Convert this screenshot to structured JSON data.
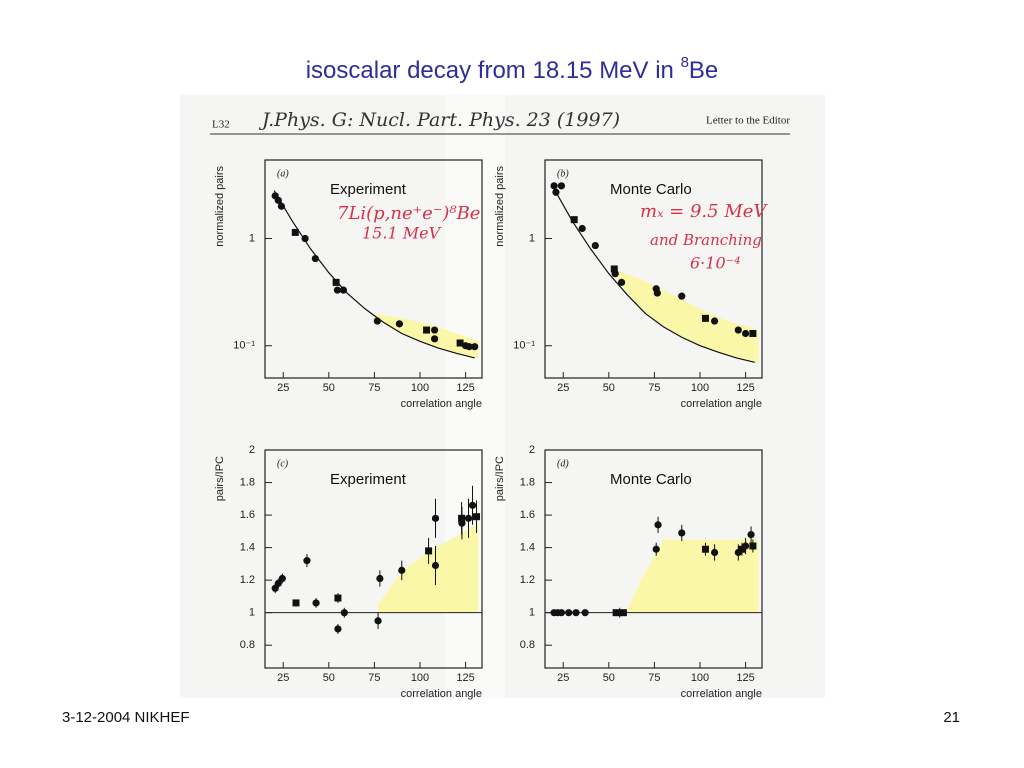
{
  "slide": {
    "title": "isoscalar decay from 18.15 MeV in ",
    "title_sup": "8",
    "title_suffix": "Be",
    "footer_left": "3-12-2004 NIKHEF",
    "page_number": "21"
  },
  "figure_header": {
    "left": "L32",
    "citation": "J.Phys. G: Nucl. Part. Phys. 23 (1997)",
    "right": "Letter to the Editor"
  },
  "chart_data": [
    {
      "type": "scatter",
      "panel_label": "(a)",
      "title": "Experiment",
      "xlabel": "correlation angle",
      "ylabel": "normalized pairs",
      "log_y": true,
      "xlim": [
        15,
        134
      ],
      "xticks": [
        25,
        50,
        75,
        100,
        125
      ],
      "ylim": [
        0.05,
        5.4
      ],
      "yticks": [
        1,
        {
          "value": 0.1,
          "label": "10⁻¹"
        }
      ],
      "annotations": [
        "7Li(p,ne⁺e⁻)⁸Be",
        "15.1 MeV"
      ],
      "annotation_color": "#d8324a",
      "series": [
        {
          "marker": "circle",
          "color": "#111111",
          "x": [
            20.6,
            22.3,
            24,
            37,
            42.6,
            54.7,
            58,
            76.6,
            88.7,
            108,
            108,
            125,
            127,
            130
          ],
          "values": [
            2.5,
            2.27,
            2.0,
            1.0,
            0.65,
            0.33,
            0.33,
            0.17,
            0.16,
            0.14,
            0.116,
            0.1,
            0.098,
            0.098
          ]
        },
        {
          "marker": "square",
          "color": "#111111",
          "x": [
            31.6,
            54,
            103.6,
            122
          ],
          "values": [
            1.14,
            0.39,
            0.14,
            0.106
          ]
        }
      ],
      "curve": {
        "color": "#111111",
        "x": [
          20,
          30,
          40,
          50,
          60,
          70,
          80,
          90,
          100,
          110,
          120,
          130
        ],
        "values": [
          2.8,
          1.45,
          0.8,
          0.48,
          0.31,
          0.22,
          0.165,
          0.13,
          0.11,
          0.095,
          0.085,
          0.077
        ]
      },
      "band": {
        "color": "#fbf7a8",
        "x": [
          75,
          90,
          105,
          120,
          132
        ],
        "low": [
          0.18,
          0.13,
          0.103,
          0.086,
          0.076
        ],
        "high": [
          0.2,
          0.18,
          0.16,
          0.13,
          0.11
        ]
      }
    },
    {
      "type": "scatter",
      "panel_label": "(b)",
      "title": "Monte Carlo",
      "xlabel": "correlation angle",
      "ylabel": "normalized pairs",
      "log_y": true,
      "xlim": [
        15,
        134
      ],
      "xticks": [
        25,
        50,
        75,
        100,
        125
      ],
      "ylim": [
        0.05,
        5.4
      ],
      "yticks": [
        1,
        {
          "value": 0.1,
          "label": "10⁻¹"
        }
      ],
      "annotations": [
        "mₓ = 9.5 MeV",
        "and Branching",
        "6·10⁻⁴"
      ],
      "annotation_color": "#d8324a",
      "series": [
        {
          "marker": "circle",
          "color": "#111111",
          "x": [
            20,
            21,
            24,
            35.4,
            42.6,
            53.5,
            57,
            76,
            76.6,
            90,
            108,
            121,
            125
          ],
          "values": [
            3.1,
            2.7,
            3.1,
            1.24,
            0.86,
            0.47,
            0.39,
            0.34,
            0.31,
            0.29,
            0.17,
            0.14,
            0.13
          ]
        },
        {
          "marker": "square",
          "color": "#111111",
          "x": [
            31,
            53,
            103,
            129
          ],
          "values": [
            1.5,
            0.52,
            0.18,
            0.13
          ]
        }
      ],
      "curve": {
        "color": "#111111",
        "x": [
          20,
          30,
          40,
          50,
          60,
          70,
          80,
          90,
          100,
          110,
          120,
          130
        ],
        "values": [
          2.9,
          1.45,
          0.8,
          0.47,
          0.3,
          0.2,
          0.15,
          0.12,
          0.1,
          0.087,
          0.077,
          0.07
        ]
      },
      "band": {
        "color": "#fbf7a8",
        "x": [
          55,
          70,
          85,
          100,
          115,
          132
        ],
        "low": [
          0.4,
          0.2,
          0.135,
          0.1,
          0.082,
          0.068
        ],
        "high": [
          0.5,
          0.4,
          0.3,
          0.22,
          0.17,
          0.14
        ]
      }
    },
    {
      "type": "scatter",
      "panel_label": "(c)",
      "title": "Experiment",
      "xlabel": "correlation angle",
      "ylabel": "pairs/IPC",
      "log_y": false,
      "xlim": [
        15,
        134
      ],
      "xticks": [
        25,
        50,
        75,
        100,
        125
      ],
      "ylim": [
        0.66,
        2
      ],
      "yticks": [
        0.8,
        1,
        1.2,
        1.4,
        1.6,
        1.8,
        2
      ],
      "reference": 1,
      "series": [
        {
          "marker": "circle",
          "color": "#111111",
          "x": [
            20.6,
            22.3,
            24.5,
            38,
            43,
            55,
            58.5,
            77,
            78,
            90,
            108.5,
            108.5,
            123,
            126.6,
            128.8
          ],
          "values": [
            1.15,
            1.18,
            1.21,
            1.32,
            1.06,
            0.9,
            1.0,
            0.95,
            1.21,
            1.26,
            1.58,
            1.29,
            1.55,
            1.58,
            1.66
          ],
          "errors": [
            0.03,
            0.03,
            0.03,
            0.04,
            0.03,
            0.03,
            0.03,
            0.05,
            0.05,
            0.06,
            0.12,
            0.12,
            0.1,
            0.12,
            0.12
          ]
        },
        {
          "marker": "square",
          "color": "#111111",
          "x": [
            32,
            55,
            104.7,
            122.8,
            131
          ],
          "values": [
            1.06,
            1.09,
            1.38,
            1.58,
            1.59
          ],
          "errors": [
            0.02,
            0.03,
            0.08,
            0.1,
            0.1
          ]
        }
      ],
      "band": {
        "color": "#fbf7a8",
        "x": [
          77,
          90,
          105,
          120,
          132
        ],
        "low": [
          1,
          1,
          1,
          1,
          1
        ],
        "high": [
          1.05,
          1.25,
          1.38,
          1.47,
          1.55
        ]
      }
    },
    {
      "type": "scatter",
      "panel_label": "(d)",
      "title": "Monte Carlo",
      "xlabel": "correlation angle",
      "ylabel": "pairs/IPC",
      "log_y": false,
      "xlim": [
        15,
        134
      ],
      "xticks": [
        25,
        50,
        75,
        100,
        125
      ],
      "ylim": [
        0.66,
        2
      ],
      "yticks": [
        0.8,
        1,
        1.2,
        1.4,
        1.6,
        1.8,
        2
      ],
      "reference": 1,
      "series": [
        {
          "marker": "circle",
          "color": "#111111",
          "x": [
            20,
            22,
            24,
            28,
            32,
            37,
            56,
            76,
            77,
            90,
            108,
            121,
            125,
            128
          ],
          "values": [
            1,
            1,
            1,
            1,
            1,
            1,
            1,
            1.39,
            1.54,
            1.49,
            1.37,
            1.37,
            1.41,
            1.48
          ],
          "errors": [
            0.01,
            0.01,
            0.01,
            0.01,
            0.01,
            0.01,
            0.03,
            0.04,
            0.05,
            0.05,
            0.05,
            0.05,
            0.05,
            0.05
          ]
        },
        {
          "marker": "square",
          "color": "#111111",
          "x": [
            54,
            58,
            103,
            123,
            129
          ],
          "values": [
            1,
            1,
            1.39,
            1.39,
            1.41
          ],
          "errors": [
            0.02,
            0.02,
            0.04,
            0.04,
            0.04
          ]
        }
      ],
      "band": {
        "color": "#fbf7a8",
        "x": [
          60,
          70,
          80,
          132
        ],
        "low": [
          1,
          1,
          1,
          1
        ],
        "high": [
          1.02,
          1.25,
          1.45,
          1.45
        ]
      }
    }
  ]
}
